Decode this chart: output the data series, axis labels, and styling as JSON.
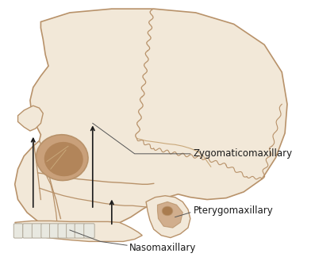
{
  "background_color": "#ffffff",
  "skull_fill": "#f2e8d8",
  "skull_outline": "#b8926a",
  "bone_detail": "#c9a87a",
  "orbit_fill": "#c9a07a",
  "orbit_dark": "#a07040",
  "teeth_fill": "#e8e8e0",
  "teeth_edge": "#b0a898",
  "label_zygomaticomaxillary": "Zygomaticomaxillary",
  "label_pterygomaxillary": "Pterygomaxillary",
  "label_nasomaxillary": "Nasomaxillary",
  "label_fontsize": 8.5,
  "arrow_color": "#1a1a1a",
  "line_color": "#555555",
  "figsize": [
    3.97,
    3.29
  ],
  "dpi": 100,
  "suture_color": "#b8926a",
  "wavy_color": "#c0956e"
}
